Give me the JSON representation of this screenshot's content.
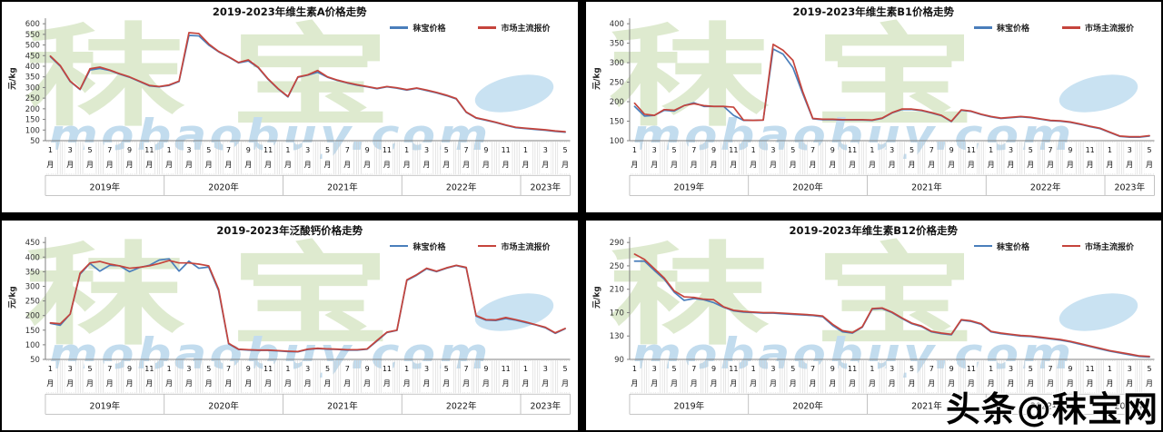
{
  "page": {
    "credit": "头条@秣宝网"
  },
  "watermark": {
    "cn_text": "秣宝",
    "url_text": "mobaobuy.com",
    "cn_color": "#DEEACF",
    "url_color": "#C2DCEE",
    "swirl_color": "#C9E2F2"
  },
  "legend": {
    "series1": "秣宝价格",
    "series2": "市场主流报价",
    "series1_color": "#4A7EBB",
    "series2_color": "#C5443C"
  },
  "axis": {
    "unit_label": "元/kg",
    "tick_months": [
      1,
      3,
      5,
      7,
      9,
      11
    ],
    "month_suffix": "月",
    "years": [
      {
        "label": "2019年",
        "months": 12
      },
      {
        "label": "2020年",
        "months": 12
      },
      {
        "label": "2021年",
        "months": 12
      },
      {
        "label": "2022年",
        "months": 12
      },
      {
        "label": "2023年",
        "months": 5
      }
    ]
  },
  "chart_data": [
    {
      "type": "line",
      "title": "2019-2023年维生素A价格走势",
      "ylabel": "元/kg",
      "ylim": [
        50,
        600
      ],
      "ytick_step": 50,
      "x_range": "2019-01 to 2023-05 (monthly)",
      "legend_position": "top-right",
      "grid": false,
      "series": [
        {
          "name": "秣宝价格",
          "color": "#4A7EBB",
          "values": [
            445,
            400,
            328,
            290,
            382,
            390,
            380,
            363,
            348,
            328,
            308,
            303,
            310,
            328,
            545,
            543,
            500,
            468,
            443,
            416,
            425,
            393,
            338,
            293,
            256,
            348,
            358,
            372,
            348,
            333,
            321,
            311,
            303,
            294,
            303,
            297,
            288,
            296,
            286,
            275,
            262,
            246,
            183,
            156,
            146,
            135,
            122,
            111,
            107,
            103,
            99,
            94,
            90
          ]
        },
        {
          "name": "市场主流报价",
          "color": "#C5443C",
          "values": [
            448,
            403,
            330,
            292,
            388,
            396,
            382,
            365,
            350,
            330,
            310,
            305,
            312,
            330,
            558,
            554,
            505,
            470,
            445,
            418,
            430,
            395,
            340,
            295,
            258,
            350,
            360,
            380,
            350,
            335,
            323,
            313,
            305,
            296,
            305,
            299,
            290,
            298,
            288,
            277,
            264,
            248,
            185,
            158,
            148,
            137,
            124,
            113,
            109,
            105,
            101,
            96,
            92
          ]
        }
      ]
    },
    {
      "type": "line",
      "title": "2019-2023年维生素B1价格走势",
      "ylabel": "元/kg",
      "ylim": [
        100,
        400
      ],
      "ytick_step": 50,
      "x_range": "2019-01 to 2023-05 (monthly)",
      "legend_position": "top-right",
      "grid": false,
      "series": [
        {
          "name": "秣宝价格",
          "color": "#4A7EBB",
          "values": [
            188,
            163,
            165,
            178,
            176,
            190,
            197,
            188,
            188,
            188,
            165,
            152,
            152,
            153,
            335,
            322,
            287,
            220,
            156,
            154,
            154,
            153,
            153,
            153,
            152,
            157,
            171,
            180,
            180,
            177,
            171,
            164,
            149,
            178,
            175,
            167,
            161,
            157,
            159,
            161,
            159,
            155,
            151,
            150,
            147,
            142,
            136,
            131,
            121,
            111,
            109,
            109,
            112
          ]
        },
        {
          "name": "市场主流报价",
          "color": "#C5443C",
          "values": [
            196,
            168,
            165,
            180,
            178,
            190,
            195,
            190,
            188,
            188,
            186,
            153,
            152,
            153,
            347,
            332,
            306,
            225,
            157,
            155,
            155,
            154,
            154,
            154,
            153,
            158,
            172,
            181,
            181,
            178,
            172,
            165,
            150,
            179,
            176,
            168,
            162,
            158,
            160,
            162,
            160,
            156,
            152,
            151,
            148,
            143,
            137,
            132,
            122,
            112,
            110,
            110,
            113
          ]
        }
      ]
    },
    {
      "type": "line",
      "title": "2019-2023年泛酸钙价格走势",
      "ylabel": "元/kg",
      "ylim": [
        50,
        450
      ],
      "ytick_step": 50,
      "x_range": "2019-01 to 2023-05 (monthly)",
      "legend_position": "top-right",
      "grid": false,
      "series": [
        {
          "name": "秣宝价格",
          "color": "#4A7EBB",
          "values": [
            173,
            167,
            205,
            342,
            378,
            352,
            372,
            370,
            350,
            364,
            372,
            390,
            394,
            352,
            386,
            362,
            366,
            285,
            103,
            84,
            82,
            81,
            81,
            79,
            77,
            76,
            84,
            87,
            85,
            84,
            82,
            82,
            85,
            113,
            142,
            149,
            320,
            338,
            360,
            350,
            362,
            371,
            363,
            198,
            184,
            183,
            190,
            184,
            176,
            168,
            158,
            139,
            155
          ]
        },
        {
          "name": "市场主流报价",
          "color": "#C5443C",
          "values": [
            175,
            172,
            205,
            345,
            380,
            385,
            376,
            370,
            362,
            365,
            370,
            378,
            388,
            380,
            380,
            376,
            370,
            290,
            105,
            85,
            83,
            82,
            82,
            80,
            78,
            77,
            85,
            88,
            86,
            85,
            83,
            83,
            86,
            115,
            143,
            150,
            322,
            340,
            362,
            352,
            363,
            372,
            365,
            200,
            186,
            185,
            193,
            186,
            178,
            169,
            160,
            141,
            156
          ]
        }
      ]
    },
    {
      "type": "line",
      "title": "2019-2023年维生素B12价格走势",
      "ylabel": "元/kg",
      "ylim": [
        90,
        290
      ],
      "ytick_step": 40,
      "x_range": "2019-01 to 2023-05 (monthly)",
      "legend_position": "top-right",
      "grid": false,
      "series": [
        {
          "name": "秣宝价格",
          "color": "#4A7EBB",
          "values": [
            258,
            258,
            242,
            227,
            205,
            191,
            194,
            192,
            187,
            179,
            173,
            171,
            170,
            169,
            169,
            168,
            167,
            166,
            165,
            163,
            148,
            137,
            135,
            145,
            176,
            177,
            170,
            160,
            151,
            146,
            137,
            134,
            132,
            157,
            155,
            150,
            137,
            134,
            132,
            130,
            129,
            127,
            125,
            123,
            120,
            116,
            112,
            108,
            104,
            101,
            98,
            95,
            94
          ]
        },
        {
          "name": "市场主流报价",
          "color": "#C5443C",
          "values": [
            270,
            261,
            245,
            229,
            207,
            197,
            196,
            193,
            192,
            180,
            174,
            172,
            171,
            170,
            170,
            169,
            168,
            167,
            166,
            164,
            150,
            139,
            136,
            146,
            177,
            178,
            171,
            161,
            152,
            147,
            138,
            135,
            133,
            158,
            156,
            151,
            138,
            135,
            133,
            131,
            130,
            128,
            126,
            124,
            121,
            117,
            113,
            109,
            105,
            102,
            99,
            96,
            95
          ]
        }
      ]
    }
  ]
}
